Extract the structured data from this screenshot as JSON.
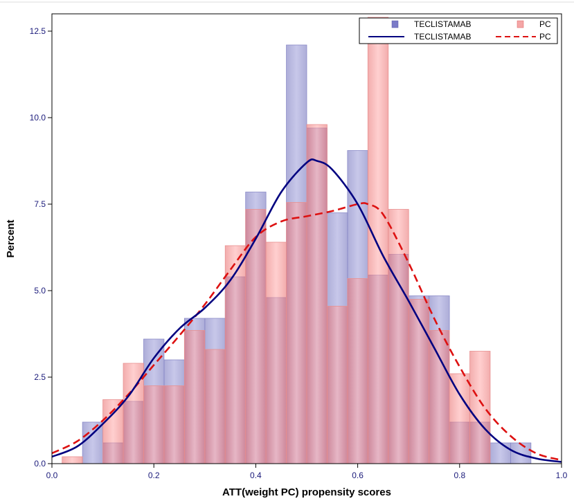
{
  "chart_data": {
    "type": "histogram",
    "xlabel": "ATT(weight PC) propensity scores",
    "ylabel": "Percent",
    "xlim": [
      0.0,
      1.0
    ],
    "ylim": [
      0.0,
      12.5
    ],
    "xticks": [
      "0.0",
      "0.2",
      "0.4",
      "0.6",
      "0.8",
      "1.0"
    ],
    "yticks": [
      "0.0",
      "2.5",
      "5.0",
      "7.5",
      "10.0",
      "12.5"
    ],
    "xtick_values": [
      0.0,
      0.2,
      0.4,
      0.6,
      0.8,
      1.0
    ],
    "ytick_values": [
      0.0,
      2.5,
      5.0,
      7.5,
      10.0,
      12.5
    ],
    "bin_width": 0.04,
    "bin_starts": [
      0.02,
      0.06,
      0.1,
      0.14,
      0.18,
      0.22,
      0.26,
      0.3,
      0.34,
      0.38,
      0.42,
      0.46,
      0.5,
      0.54,
      0.58,
      0.62,
      0.66,
      0.7,
      0.74,
      0.78,
      0.82,
      0.86,
      0.9
    ],
    "series": [
      {
        "name": "TECLISTAMAB",
        "kind": "histogram",
        "color": "#7b7bc8",
        "values": [
          0.0,
          1.2,
          0.6,
          1.8,
          3.6,
          3.0,
          4.2,
          4.2,
          5.4,
          7.85,
          4.8,
          12.1,
          9.7,
          7.25,
          9.05,
          5.45,
          6.05,
          4.85,
          4.85,
          1.2,
          1.2,
          0.6,
          0.6
        ]
      },
      {
        "name": "PC",
        "kind": "histogram",
        "color": "#f08080",
        "values": [
          0.2,
          0.0,
          1.85,
          2.9,
          2.25,
          2.25,
          3.85,
          3.3,
          6.3,
          7.35,
          6.4,
          7.55,
          9.8,
          4.55,
          5.35,
          12.9,
          7.35,
          4.75,
          3.85,
          2.6,
          3.25,
          0.0,
          0.0
        ]
      },
      {
        "name": "TECLISTAMAB",
        "kind": "density",
        "color": "#000080",
        "x": [
          0.0,
          0.05,
          0.1,
          0.15,
          0.2,
          0.25,
          0.3,
          0.35,
          0.4,
          0.45,
          0.5,
          0.52,
          0.55,
          0.6,
          0.65,
          0.7,
          0.75,
          0.8,
          0.85,
          0.9,
          0.95,
          1.0
        ],
        "y": [
          0.2,
          0.5,
          1.15,
          1.95,
          3.05,
          3.9,
          4.5,
          5.3,
          6.5,
          7.85,
          8.7,
          8.75,
          8.5,
          7.5,
          6.0,
          4.7,
          3.35,
          2.0,
          1.0,
          0.4,
          0.15,
          0.05
        ]
      },
      {
        "name": "PC",
        "kind": "density",
        "color": "#dd1111",
        "x": [
          0.0,
          0.05,
          0.1,
          0.15,
          0.2,
          0.25,
          0.3,
          0.35,
          0.4,
          0.45,
          0.5,
          0.55,
          0.6,
          0.62,
          0.65,
          0.7,
          0.75,
          0.8,
          0.85,
          0.9,
          0.95,
          1.0
        ],
        "y": [
          0.3,
          0.65,
          1.25,
          2.0,
          2.85,
          3.7,
          4.6,
          5.6,
          6.55,
          7.0,
          7.15,
          7.3,
          7.5,
          7.5,
          7.2,
          5.8,
          4.2,
          2.8,
          1.6,
          0.8,
          0.3,
          0.1
        ]
      }
    ],
    "legend": {
      "position": "top-right",
      "entries": [
        {
          "label": "TECLISTAMAB",
          "type": "bar",
          "color": "#7b7bc8"
        },
        {
          "label": "PC",
          "type": "bar",
          "color": "#f08080"
        },
        {
          "label": "TECLISTAMAB",
          "type": "line",
          "color": "#000080",
          "dash": "solid"
        },
        {
          "label": "PC",
          "type": "line",
          "color": "#dd1111",
          "dash": "dashed"
        }
      ]
    }
  }
}
